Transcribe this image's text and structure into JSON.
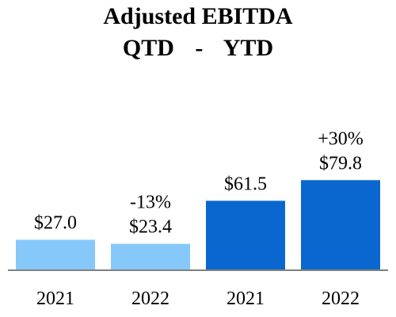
{
  "header": {
    "title": "Adjusted EBITDA",
    "subtitle_left": "QTD",
    "subtitle_separator": "-",
    "subtitle_right": "YTD"
  },
  "colors": {
    "qtd": "#86c8fa",
    "ytd": "#0a67cf",
    "axis": "#808080"
  },
  "chart_data": {
    "type": "bar",
    "title": "Adjusted EBITDA",
    "groups": [
      "QTD",
      "YTD"
    ],
    "categories": [
      "2021",
      "2022",
      "2021",
      "2022"
    ],
    "values": [
      27.0,
      23.4,
      61.5,
      79.8
    ],
    "value_labels": [
      "$27.0",
      "$23.4",
      "$61.5",
      "$79.8"
    ],
    "change_labels": [
      "",
      "-13%",
      "",
      "+30%"
    ],
    "bar_groups": [
      "QTD",
      "QTD",
      "YTD",
      "YTD"
    ],
    "ylim": [
      0,
      100
    ],
    "grid": false,
    "legend": "none"
  }
}
